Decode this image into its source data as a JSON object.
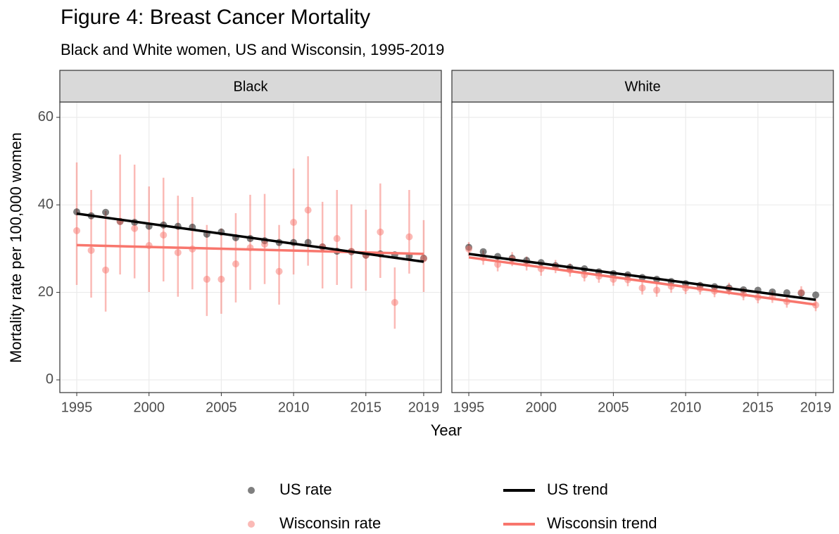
{
  "title": "Figure 4: Breast Cancer Mortality",
  "subtitle": "Black and White women, US and Wisconsin, 1995-2019",
  "xlabel": "Year",
  "ylabel": "Mortality rate per 100,000 women",
  "legend": [
    {
      "name": "US rate",
      "color": "#000000",
      "kind": "point"
    },
    {
      "name": "Wisconsin rate",
      "color": "#F8766D",
      "kind": "point"
    },
    {
      "name": "US trend",
      "color": "#000000",
      "kind": "line"
    },
    {
      "name": "Wisconsin trend",
      "color": "#F8766D",
      "kind": "line"
    }
  ],
  "chart_data": [
    {
      "type": "scatter",
      "title": "Black",
      "x": [
        1995,
        1996,
        1997,
        1998,
        1999,
        2000,
        2001,
        2002,
        2003,
        2004,
        2005,
        2006,
        2007,
        2008,
        2009,
        2010,
        2011,
        2012,
        2013,
        2014,
        2015,
        2016,
        2017,
        2018,
        2019
      ],
      "xlim": [
        1993.83,
        2020.22
      ],
      "xticks": [
        1995,
        2000,
        2005,
        2010,
        2015,
        2019
      ],
      "ylim": [
        -2.9,
        63.5
      ],
      "yticks": [
        0,
        20,
        40,
        60
      ],
      "grid": true,
      "series": [
        {
          "color": "#000000",
          "values": [
            38.4,
            37.5,
            38.3,
            36.2,
            36.0,
            35.1,
            35.4,
            35.1,
            34.9,
            33.3,
            33.8,
            32.5,
            32.3,
            31.8,
            31.4,
            31.4,
            31.4,
            30.4,
            29.4,
            29.3,
            28.5,
            28.8,
            28.6,
            28.3,
            27.8
          ]
        },
        {
          "color": "#F8766D",
          "values": [
            34.1,
            29.6,
            25.1,
            36.2,
            34.6,
            30.7,
            33.1,
            29.1,
            29.9,
            23.0,
            23.0,
            26.5,
            30.2,
            31.0,
            24.8,
            36.0,
            38.8,
            30.4,
            32.3,
            29.4,
            28.5,
            33.8,
            17.7,
            32.7,
            27.7
          ],
          "lower": [
            21.7,
            18.8,
            15.6,
            24.1,
            23.2,
            20.1,
            22.5,
            19.0,
            20.7,
            14.6,
            15.1,
            17.7,
            20.6,
            21.9,
            17.2,
            24.1,
            26.1,
            20.9,
            21.7,
            20.9,
            20.4,
            23.3,
            11.7,
            24.3,
            20.1
          ],
          "upper": [
            49.7,
            43.4,
            38.6,
            51.5,
            49.2,
            44.2,
            46.2,
            42.1,
            41.8,
            35.4,
            34.6,
            38.1,
            42.3,
            42.5,
            35.4,
            48.3,
            51.1,
            40.7,
            43.4,
            40.1,
            38.9,
            44.9,
            25.7,
            43.4,
            36.5
          ]
        },
        {
          "color": "#000000",
          "x": [
            1995,
            2019
          ],
          "values": [
            38.0,
            27.0
          ]
        },
        {
          "color": "#F8766D",
          "x": [
            1995,
            2019
          ],
          "values": [
            30.8,
            28.8
          ]
        }
      ]
    },
    {
      "type": "scatter",
      "title": "White",
      "x": [
        1995,
        1996,
        1997,
        1998,
        1999,
        2000,
        2001,
        2002,
        2003,
        2004,
        2005,
        2006,
        2007,
        2008,
        2009,
        2010,
        2011,
        2012,
        2013,
        2014,
        2015,
        2016,
        2017,
        2018,
        2019
      ],
      "xlim": [
        1993.83,
        2020.22
      ],
      "xticks": [
        1995,
        2000,
        2005,
        2010,
        2015,
        2019
      ],
      "ylim": [
        -2.9,
        63.5
      ],
      "yticks": [
        0,
        20,
        40,
        60
      ],
      "grid": true,
      "series": [
        {
          "color": "#000000",
          "values": [
            30.3,
            29.3,
            28.2,
            27.8,
            27.3,
            26.8,
            26.1,
            25.7,
            25.4,
            24.7,
            24.3,
            24.0,
            23.4,
            23.0,
            22.5,
            22.0,
            21.6,
            21.3,
            21.0,
            20.6,
            20.5,
            20.1,
            19.9,
            19.8,
            19.4
          ]
        },
        {
          "color": "#F8766D",
          "values": [
            29.9,
            27.9,
            26.4,
            27.6,
            26.6,
            25.4,
            25.9,
            25.1,
            24.0,
            23.7,
            23.0,
            22.9,
            21.0,
            20.5,
            21.4,
            21.0,
            20.9,
            20.3,
            20.8,
            19.6,
            18.9,
            19.0,
            17.9,
            20.0,
            17.1
          ],
          "lower": [
            28.3,
            26.3,
            24.8,
            26.0,
            25.0,
            23.8,
            24.4,
            23.6,
            22.5,
            22.2,
            21.5,
            21.4,
            19.5,
            19.0,
            19.9,
            19.6,
            19.5,
            18.9,
            19.4,
            18.2,
            17.5,
            17.6,
            16.5,
            18.6,
            15.7
          ],
          "upper": [
            31.5,
            29.6,
            28.0,
            29.2,
            28.2,
            27.0,
            27.4,
            26.6,
            25.5,
            25.2,
            24.5,
            24.4,
            22.5,
            22.0,
            22.9,
            22.4,
            22.3,
            21.7,
            22.2,
            21.0,
            20.3,
            20.4,
            19.3,
            21.4,
            18.5
          ]
        },
        {
          "color": "#000000",
          "x": [
            1995,
            2019
          ],
          "values": [
            28.8,
            18.3
          ]
        },
        {
          "color": "#F8766D",
          "x": [
            1995,
            2019
          ],
          "values": [
            28.0,
            17.2
          ]
        }
      ]
    }
  ]
}
